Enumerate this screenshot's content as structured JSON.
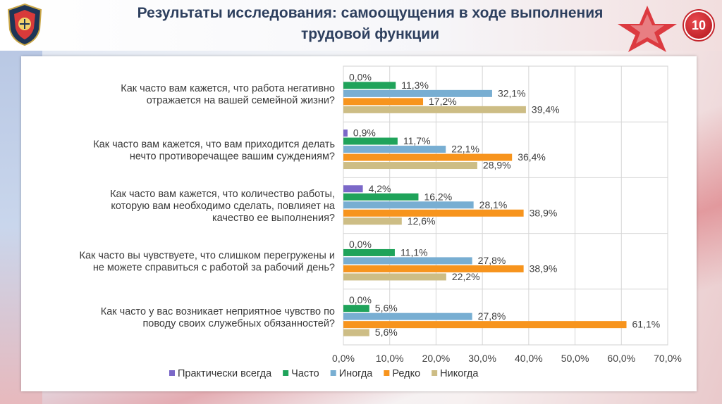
{
  "slide": {
    "title_line1": "Результаты исследования: самоощущения в ходе выполнения",
    "title_line2": "трудовой функции",
    "page_number": "10",
    "logo_icon": "university-shield-icon",
    "decor_icon": "red-star-icon"
  },
  "chart_data": {
    "type": "bar",
    "orientation": "horizontal",
    "title": "",
    "xlabel": "",
    "ylabel": "",
    "xlim": [
      0,
      70
    ],
    "ticks": [
      "0,0%",
      "10,0%",
      "20,0%",
      "30,0%",
      "40,0%",
      "50,0%",
      "60,0%",
      "70,0%"
    ],
    "grid": true,
    "legend_position": "bottom",
    "categories": [
      [
        "Как часто вам кажется, что работа негативно",
        "отражается на вашей семейной жизни?"
      ],
      [
        "Как часто вам кажется, что вам приходится делать",
        "нечто противоречащее вашим суждениям?"
      ],
      [
        "Как часто вам кажется, что количество работы,",
        "которую вам необходимо сделать, повлияет на",
        "качество ее выполнения?"
      ],
      [
        "Как часто вы чувствуете, что слишком перегружены и",
        "не можете справиться с работой за рабочий день?"
      ],
      [
        "Как часто у вас возникает неприятное чувство по",
        "поводу своих служебных обязанностей?"
      ]
    ],
    "series": [
      {
        "name": "Практически всегда",
        "color": "#7b68c8",
        "values": [
          0.0,
          0.9,
          4.2,
          0.0,
          0.0
        ],
        "labels": [
          "0,0%",
          "0,9%",
          "4,2%",
          "0,0%",
          "0,0%"
        ]
      },
      {
        "name": "Часто",
        "color": "#1fa35a",
        "values": [
          11.3,
          11.7,
          16.2,
          11.1,
          5.6
        ],
        "labels": [
          "11,3%",
          "11,7%",
          "16,2%",
          "11,1%",
          "5,6%"
        ]
      },
      {
        "name": "Иногда",
        "color": "#78aed2",
        "values": [
          32.1,
          22.1,
          28.1,
          27.8,
          27.8
        ],
        "labels": [
          "32,1%",
          "22,1%",
          "28,1%",
          "27,8%",
          "27,8%"
        ]
      },
      {
        "name": "Редко",
        "color": "#f7941d",
        "values": [
          17.2,
          36.4,
          38.9,
          38.9,
          61.1
        ],
        "labels": [
          "17,2%",
          "36,4%",
          "38,9%",
          "38,9%",
          "61,1%"
        ]
      },
      {
        "name": "Никогда",
        "color": "#cdbd85",
        "values": [
          39.4,
          28.9,
          12.6,
          22.2,
          5.6
        ],
        "labels": [
          "39,4%",
          "28,9%",
          "12,6%",
          "22,2%",
          "5,6%"
        ]
      }
    ]
  }
}
